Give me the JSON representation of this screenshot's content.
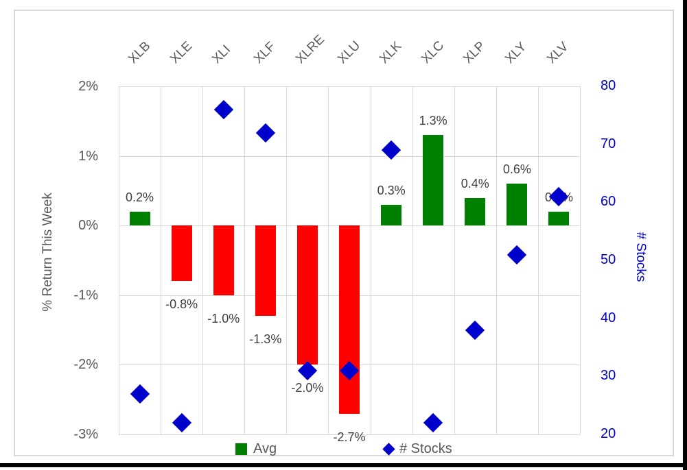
{
  "chart_data": {
    "type": "combo",
    "categories": [
      "XLB",
      "XLE",
      "XLI",
      "XLF",
      "XLRE",
      "XLU",
      "XLK",
      "XLC",
      "XLP",
      "XLY",
      "XLV"
    ],
    "series": [
      {
        "name": "Avg",
        "type": "bar",
        "axis": "left",
        "values": [
          0.2,
          -0.8,
          -1.0,
          -1.3,
          -2.0,
          -2.7,
          0.3,
          1.3,
          0.4,
          0.6,
          0.2
        ],
        "labels": [
          "0.2%",
          "-0.8%",
          "-1.0%",
          "-1.3%",
          "-2.0%",
          "-2.7%",
          "0.3%",
          "1.3%",
          "0.4%",
          "0.6%",
          "0.2%"
        ],
        "positive_color": "#008000",
        "negative_color": "#FF0000"
      },
      {
        "name": "# Stocks",
        "type": "scatter",
        "marker": "diamond",
        "axis": "right",
        "values": [
          27,
          22,
          76,
          72,
          31,
          31,
          69,
          22,
          38,
          51,
          61
        ],
        "color": "#0000CC"
      }
    ],
    "left_axis": {
      "title": "% Return This Week",
      "ticks": [
        "2%",
        "1%",
        "0%",
        "-1%",
        "-2%",
        "-3%"
      ],
      "min": -3,
      "max": 2,
      "color": "#595959"
    },
    "right_axis": {
      "title": "# Stocks",
      "ticks": [
        "80",
        "70",
        "60",
        "50",
        "40",
        "30",
        "20"
      ],
      "min": 20,
      "max": 80,
      "color": "#0000CC"
    },
    "legend": [
      {
        "label": "Avg",
        "marker": "square",
        "color": "#008000"
      },
      {
        "label": "# Stocks",
        "marker": "diamond",
        "color": "#0000CC"
      }
    ],
    "grid": true,
    "gridline_color": "#D9D9D9"
  }
}
